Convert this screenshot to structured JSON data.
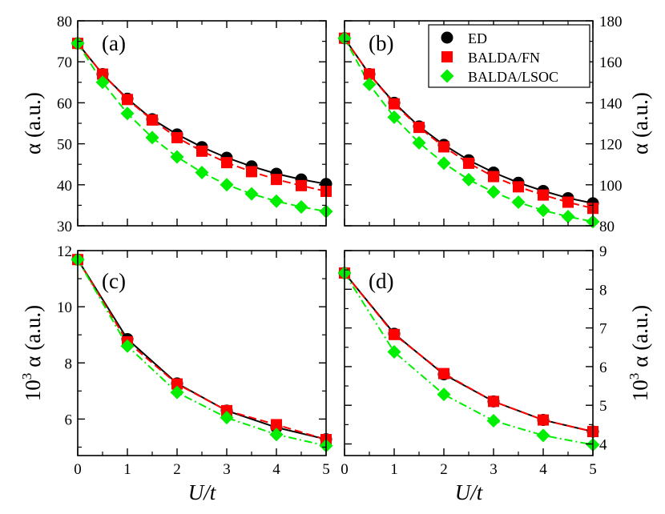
{
  "figure": {
    "xlabel": "U/t",
    "legend": {
      "location": "top-right of panel (b)",
      "entries": [
        "ED",
        "BALDA/FN",
        "BALDA/LSOC"
      ]
    }
  },
  "chart_data": [
    {
      "panel": "(a)",
      "type": "line",
      "ylabel": "α (a.u.)",
      "ylabel_side": "left",
      "xlim": [
        0,
        5
      ],
      "ylim": [
        30,
        80
      ],
      "xticks": [
        0,
        1,
        2,
        3,
        4,
        5
      ],
      "yticks": [
        30,
        40,
        50,
        60,
        70,
        80
      ],
      "show_x_ticklabels": false,
      "series": [
        {
          "name": "ED",
          "color": "#000000",
          "marker": "circle",
          "linestyle": "solid",
          "x": [
            0,
            0.5,
            1,
            1.5,
            2,
            2.5,
            3,
            3.5,
            4,
            4.5,
            5
          ],
          "values": [
            74.5,
            67.0,
            61.0,
            56.0,
            52.3,
            49.2,
            46.6,
            44.5,
            42.7,
            41.3,
            40.2
          ]
        },
        {
          "name": "BALDA/FN",
          "color": "#ff0000",
          "marker": "square",
          "linestyle": "dashed",
          "x": [
            0,
            0.5,
            1,
            1.5,
            2,
            2.5,
            3,
            3.5,
            4,
            4.5,
            5
          ],
          "values": [
            74.5,
            67.0,
            60.8,
            55.8,
            51.5,
            48.2,
            45.4,
            43.2,
            41.3,
            39.8,
            38.4
          ]
        },
        {
          "name": "BALDA/LSOC",
          "color": "#00ee00",
          "marker": "diamond",
          "linestyle": "dashed",
          "x": [
            0,
            0.5,
            1,
            1.5,
            2,
            2.5,
            3,
            3.5,
            4,
            4.5,
            5
          ],
          "values": [
            74.5,
            65.0,
            57.4,
            51.5,
            46.8,
            43.0,
            40.0,
            37.8,
            36.0,
            34.6,
            33.5
          ]
        }
      ]
    },
    {
      "panel": "(b)",
      "type": "line",
      "ylabel": "α (a.u.)",
      "ylabel_side": "right",
      "xlim": [
        0,
        5
      ],
      "ylim": [
        80,
        180
      ],
      "xticks": [
        0,
        1,
        2,
        3,
        4,
        5
      ],
      "yticks": [
        80,
        100,
        120,
        140,
        160,
        180
      ],
      "show_x_ticklabels": false,
      "series": [
        {
          "name": "ED",
          "color": "#000000",
          "marker": "circle",
          "linestyle": "solid",
          "x": [
            0,
            0.5,
            1,
            1.5,
            2,
            2.5,
            3,
            3.5,
            4,
            4.5,
            5
          ],
          "values": [
            171.5,
            154.0,
            140.0,
            128.5,
            119.5,
            112.0,
            106.0,
            101.0,
            97.0,
            93.5,
            91.0
          ]
        },
        {
          "name": "BALDA/FN",
          "color": "#ff0000",
          "marker": "square",
          "linestyle": "dashed",
          "x": [
            0,
            0.5,
            1,
            1.5,
            2,
            2.5,
            3,
            3.5,
            4,
            4.5,
            5
          ],
          "values": [
            171.5,
            154.0,
            139.5,
            128.0,
            118.5,
            110.5,
            104.0,
            99.0,
            95.0,
            91.5,
            88.5
          ]
        },
        {
          "name": "BALDA/LSOC",
          "color": "#00ee00",
          "marker": "diamond",
          "linestyle": "dashed",
          "x": [
            0,
            0.5,
            1,
            1.5,
            2,
            2.5,
            3,
            3.5,
            4,
            4.5,
            5
          ],
          "values": [
            171.5,
            149.0,
            133.0,
            120.5,
            110.5,
            102.5,
            96.5,
            91.5,
            87.5,
            84.5,
            82.0
          ]
        }
      ]
    },
    {
      "panel": "(c)",
      "type": "line",
      "ylabel": "10³ α (a.u.)",
      "ylabel_prefix": "10",
      "ylabel_exp": "3",
      "ylabel_suffix": "α (a.u.)",
      "ylabel_side": "left",
      "xlim": [
        0,
        5
      ],
      "ylim": [
        4.7,
        12
      ],
      "xticks": [
        0,
        1,
        2,
        3,
        4,
        5
      ],
      "yticks": [
        6,
        8,
        10,
        12
      ],
      "show_x_ticklabels": true,
      "series": [
        {
          "name": "ED",
          "color": "#000000",
          "marker": "circle",
          "linestyle": "solid",
          "x": [
            0,
            1,
            2,
            3,
            4,
            5
          ],
          "values": [
            11.68,
            8.85,
            7.27,
            6.3,
            5.7,
            5.28
          ]
        },
        {
          "name": "BALDA/FN",
          "color": "#ff0000",
          "marker": "square",
          "linestyle": "dashed",
          "x": [
            0,
            1,
            2,
            3,
            4,
            5
          ],
          "values": [
            11.68,
            8.75,
            7.25,
            6.3,
            5.8,
            5.27
          ]
        },
        {
          "name": "BALDA/LSOC",
          "color": "#00ee00",
          "marker": "diamond",
          "linestyle": "dash-dot",
          "x": [
            0,
            1,
            2,
            3,
            4,
            5
          ],
          "values": [
            11.68,
            8.6,
            6.95,
            6.05,
            5.45,
            5.05
          ]
        }
      ]
    },
    {
      "panel": "(d)",
      "type": "line",
      "ylabel": "10³ α (a.u.)",
      "ylabel_prefix": "10",
      "ylabel_exp": "3",
      "ylabel_suffix": "α (a.u.)",
      "ylabel_side": "right",
      "xlim": [
        0,
        5
      ],
      "ylim": [
        3.7,
        9
      ],
      "xticks": [
        0,
        1,
        2,
        3,
        4,
        5
      ],
      "yticks": [
        4,
        5,
        6,
        7,
        8,
        9
      ],
      "show_x_ticklabels": true,
      "series": [
        {
          "name": "ED",
          "color": "#000000",
          "marker": "circle",
          "linestyle": "solid",
          "x": [
            0,
            1,
            2,
            3,
            4,
            5
          ],
          "values": [
            8.42,
            6.85,
            5.8,
            5.1,
            4.62,
            4.32
          ]
        },
        {
          "name": "BALDA/FN",
          "color": "#ff0000",
          "marker": "square",
          "linestyle": "dashed",
          "x": [
            0,
            1,
            2,
            3,
            4,
            5
          ],
          "values": [
            8.42,
            6.83,
            5.82,
            5.1,
            4.62,
            4.32
          ]
        },
        {
          "name": "BALDA/LSOC",
          "color": "#00ee00",
          "marker": "diamond",
          "linestyle": "dash-dot",
          "x": [
            0,
            1,
            2,
            3,
            4,
            5
          ],
          "values": [
            8.42,
            6.38,
            5.28,
            4.6,
            4.22,
            3.98
          ]
        }
      ]
    }
  ]
}
